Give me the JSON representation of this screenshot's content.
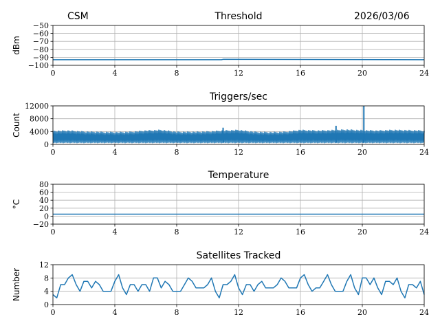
{
  "header": {
    "left": "CSM",
    "center": "Threshold",
    "right": "2026/03/06"
  },
  "colors": {
    "series": "#1f77b4",
    "grid": "#b0b0b0"
  },
  "chart_data": [
    {
      "type": "line",
      "title": "Threshold",
      "xlabel": "",
      "ylabel": "dBm",
      "xlim": [
        0,
        24
      ],
      "ylim": [
        -100,
        -50
      ],
      "xticks": [
        0,
        4,
        8,
        12,
        16,
        20,
        24
      ],
      "yticks": [
        -100,
        -90,
        -80,
        -70,
        -60,
        -50
      ],
      "grid": true,
      "series": [
        {
          "x": [
            0,
            10.9,
            11.0,
            24
          ],
          "y": [
            -93,
            -93,
            -92.5,
            -93
          ]
        }
      ]
    },
    {
      "type": "line",
      "title": "Triggers/sec",
      "xlabel": "",
      "ylabel": "Count",
      "xlim": [
        0,
        24
      ],
      "ylim": [
        0,
        12000
      ],
      "xticks": [
        0,
        4,
        8,
        12,
        16,
        20,
        24
      ],
      "yticks": [
        0,
        4000,
        8000,
        12000
      ],
      "grid": true,
      "band_low": 500,
      "band_high": [
        4200,
        4300,
        4000,
        3900,
        3800,
        3900,
        4300,
        4500,
        3900,
        3900,
        4000,
        4300,
        4500,
        3900,
        3800,
        3900,
        4500,
        4300,
        4400,
        4600,
        4400,
        4300,
        4500,
        4400,
        4300
      ],
      "spikes": [
        {
          "x": 20.1,
          "y": 12000
        },
        {
          "x": 18.3,
          "y": 5800
        },
        {
          "x": 11.0,
          "y": 5200
        }
      ]
    },
    {
      "type": "line",
      "title": "Temperature",
      "xlabel": "",
      "ylabel": "°C",
      "xlim": [
        0,
        24
      ],
      "ylim": [
        -20,
        80
      ],
      "xticks": [
        0,
        4,
        8,
        12,
        16,
        20,
        24
      ],
      "yticks": [
        -20,
        0,
        20,
        40,
        60,
        80
      ],
      "grid": true,
      "series": [
        {
          "x": [
            0,
            24
          ],
          "y": [
            5,
            5
          ]
        }
      ]
    },
    {
      "type": "line",
      "title": "Satellites Tracked",
      "xlabel": "",
      "ylabel": "Number",
      "xlim": [
        0,
        24
      ],
      "ylim": [
        0,
        12
      ],
      "xticks": [
        0,
        4,
        8,
        12,
        16,
        20,
        24
      ],
      "yticks": [
        0,
        4,
        8,
        12
      ],
      "grid": true,
      "series": [
        {
          "x": [
            0,
            0.5,
            1,
            1.5,
            2,
            2.5,
            3,
            3.5,
            4,
            4.5,
            5,
            5.5,
            6,
            6.5,
            7,
            7.5,
            8,
            8.5,
            9,
            9.5,
            10,
            10.5,
            11,
            11.5,
            12,
            12.5,
            13,
            13.5,
            14,
            14.5,
            15,
            15.5,
            16,
            16.5,
            17,
            17.5,
            18,
            18.5,
            19,
            19.5,
            20,
            20.5,
            21,
            21.5,
            22,
            22.5,
            23,
            23.5,
            24
          ],
          "y": [
            3,
            6,
            8,
            6,
            7,
            5,
            6,
            4,
            7,
            5,
            6,
            4,
            6,
            8,
            5,
            6,
            4,
            6,
            7,
            5,
            6,
            4,
            6,
            7,
            5,
            6,
            4,
            7,
            5,
            6,
            7,
            5,
            8,
            6,
            5,
            7,
            6,
            4,
            7,
            5,
            8,
            6,
            5,
            7,
            6,
            4,
            6,
            5,
            3
          ]
        }
      ]
    }
  ]
}
